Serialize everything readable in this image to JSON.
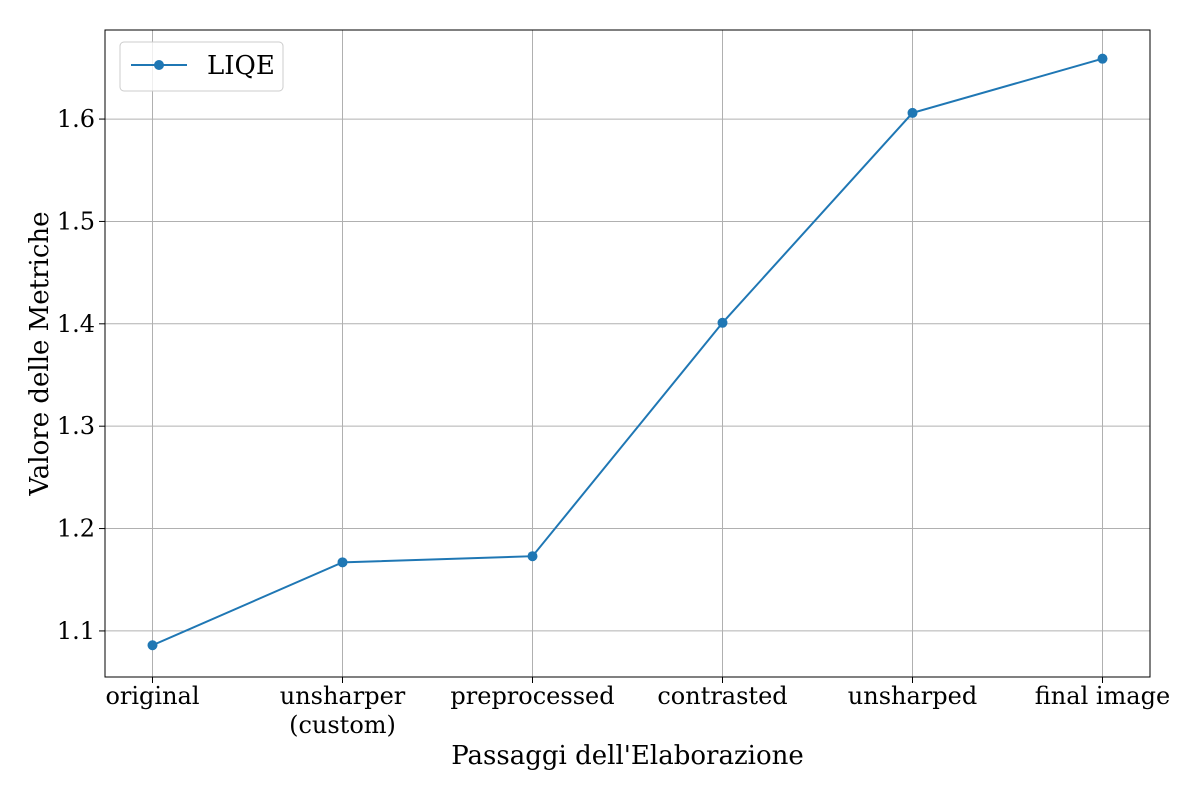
{
  "chart_data": {
    "type": "line",
    "categories": [
      "original",
      "unsharper\n(custom)",
      "preprocessed",
      "contrasted",
      "unsharped",
      "final image"
    ],
    "series": [
      {
        "name": "LIQE",
        "values": [
          1.086,
          1.167,
          1.173,
          1.401,
          1.606,
          1.659
        ],
        "color": "#1f77b4"
      }
    ],
    "xlabel": "Passaggi dell'Elaborazione",
    "ylabel": "Valore delle Metriche",
    "ylim": [
      1.055,
      1.687
    ],
    "yticks": [
      1.1,
      1.2,
      1.3,
      1.4,
      1.5,
      1.6
    ],
    "grid": true,
    "legend_position": "top-left"
  }
}
